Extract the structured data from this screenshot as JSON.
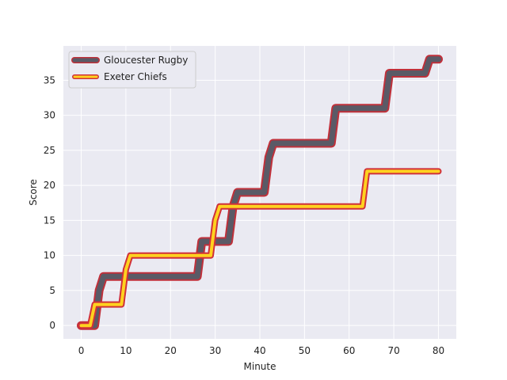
{
  "chart_data": {
    "type": "line",
    "title": "",
    "xlabel": "Minute",
    "ylabel": "Score",
    "xlim": [
      -4,
      84
    ],
    "ylim": [
      -1.9,
      39.9
    ],
    "xticks": [
      0,
      10,
      20,
      30,
      40,
      50,
      60,
      70,
      80
    ],
    "yticks": [
      0,
      5,
      10,
      15,
      20,
      25,
      30,
      35
    ],
    "grid": true,
    "legend_position": "top-left",
    "series": [
      {
        "name": "Gloucester Rugby",
        "color": "#5a5a66",
        "edge_color": "#c0303a",
        "points": [
          [
            0,
            0
          ],
          [
            3,
            0
          ],
          [
            4,
            5
          ],
          [
            5,
            7
          ],
          [
            26,
            7
          ],
          [
            27,
            12
          ],
          [
            33,
            12
          ],
          [
            34,
            17
          ],
          [
            35,
            19
          ],
          [
            41,
            19
          ],
          [
            42,
            24
          ],
          [
            43,
            26
          ],
          [
            56,
            26
          ],
          [
            57,
            31
          ],
          [
            68,
            31
          ],
          [
            69,
            36
          ],
          [
            77,
            36
          ],
          [
            78,
            38
          ],
          [
            80,
            38
          ]
        ]
      },
      {
        "name": "Exeter Chiefs",
        "color": "#ffd21f",
        "edge_color": "#d0303a",
        "points": [
          [
            0,
            0
          ],
          [
            2,
            0
          ],
          [
            3,
            3
          ],
          [
            9,
            3
          ],
          [
            10,
            8
          ],
          [
            11,
            10
          ],
          [
            29,
            10
          ],
          [
            30,
            15
          ],
          [
            31,
            17
          ],
          [
            63,
            17
          ],
          [
            64,
            22
          ],
          [
            80,
            22
          ]
        ]
      }
    ]
  }
}
